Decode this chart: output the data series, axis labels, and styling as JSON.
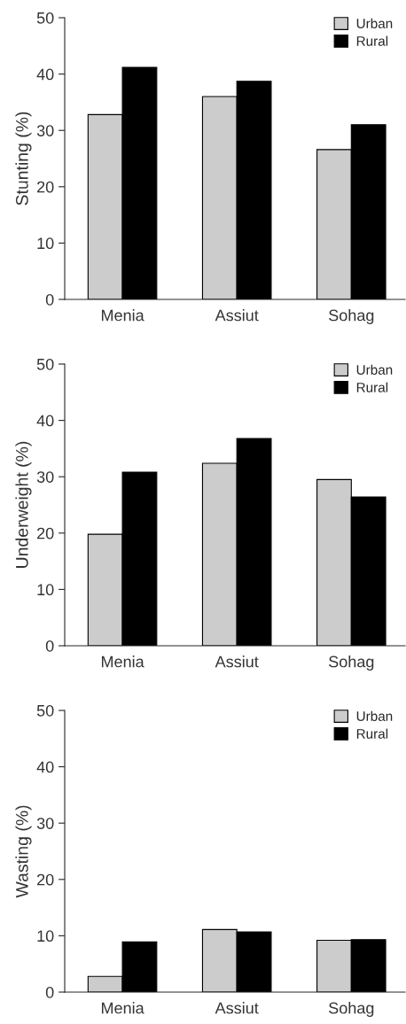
{
  "chart_data": [
    {
      "type": "bar",
      "ylabel": "Stunting (%)",
      "categories": [
        "Menia",
        "Assiut",
        "Sohag"
      ],
      "ylim": [
        0,
        50
      ],
      "yticks": [
        0,
        10,
        20,
        30,
        40,
        50
      ],
      "legend": "top right",
      "grid": false,
      "series": [
        {
          "name": "Urban",
          "color": "#cccccc",
          "values": [
            32.8,
            36.0,
            26.6
          ]
        },
        {
          "name": "Rural",
          "color": "#000000",
          "values": [
            41.2,
            38.7,
            31.0
          ]
        }
      ]
    },
    {
      "type": "bar",
      "ylabel": "Underweight (%)",
      "categories": [
        "Menia",
        "Assiut",
        "Sohag"
      ],
      "ylim": [
        0,
        50
      ],
      "yticks": [
        0,
        10,
        20,
        30,
        40,
        50
      ],
      "legend": "top right",
      "grid": false,
      "series": [
        {
          "name": "Urban",
          "color": "#cccccc",
          "values": [
            19.8,
            32.4,
            29.5
          ]
        },
        {
          "name": "Rural",
          "color": "#000000",
          "values": [
            30.8,
            36.8,
            26.4
          ]
        }
      ]
    },
    {
      "type": "bar",
      "ylabel": "Wasting (%)",
      "categories": [
        "Menia",
        "Assiut",
        "Sohag"
      ],
      "ylim": [
        0,
        50
      ],
      "yticks": [
        0,
        10,
        20,
        30,
        40,
        50
      ],
      "legend": "top right",
      "grid": false,
      "series": [
        {
          "name": "Urban",
          "color": "#cccccc",
          "values": [
            2.8,
            11.1,
            9.2
          ]
        },
        {
          "name": "Rural",
          "color": "#000000",
          "values": [
            8.9,
            10.7,
            9.3
          ]
        }
      ]
    }
  ]
}
